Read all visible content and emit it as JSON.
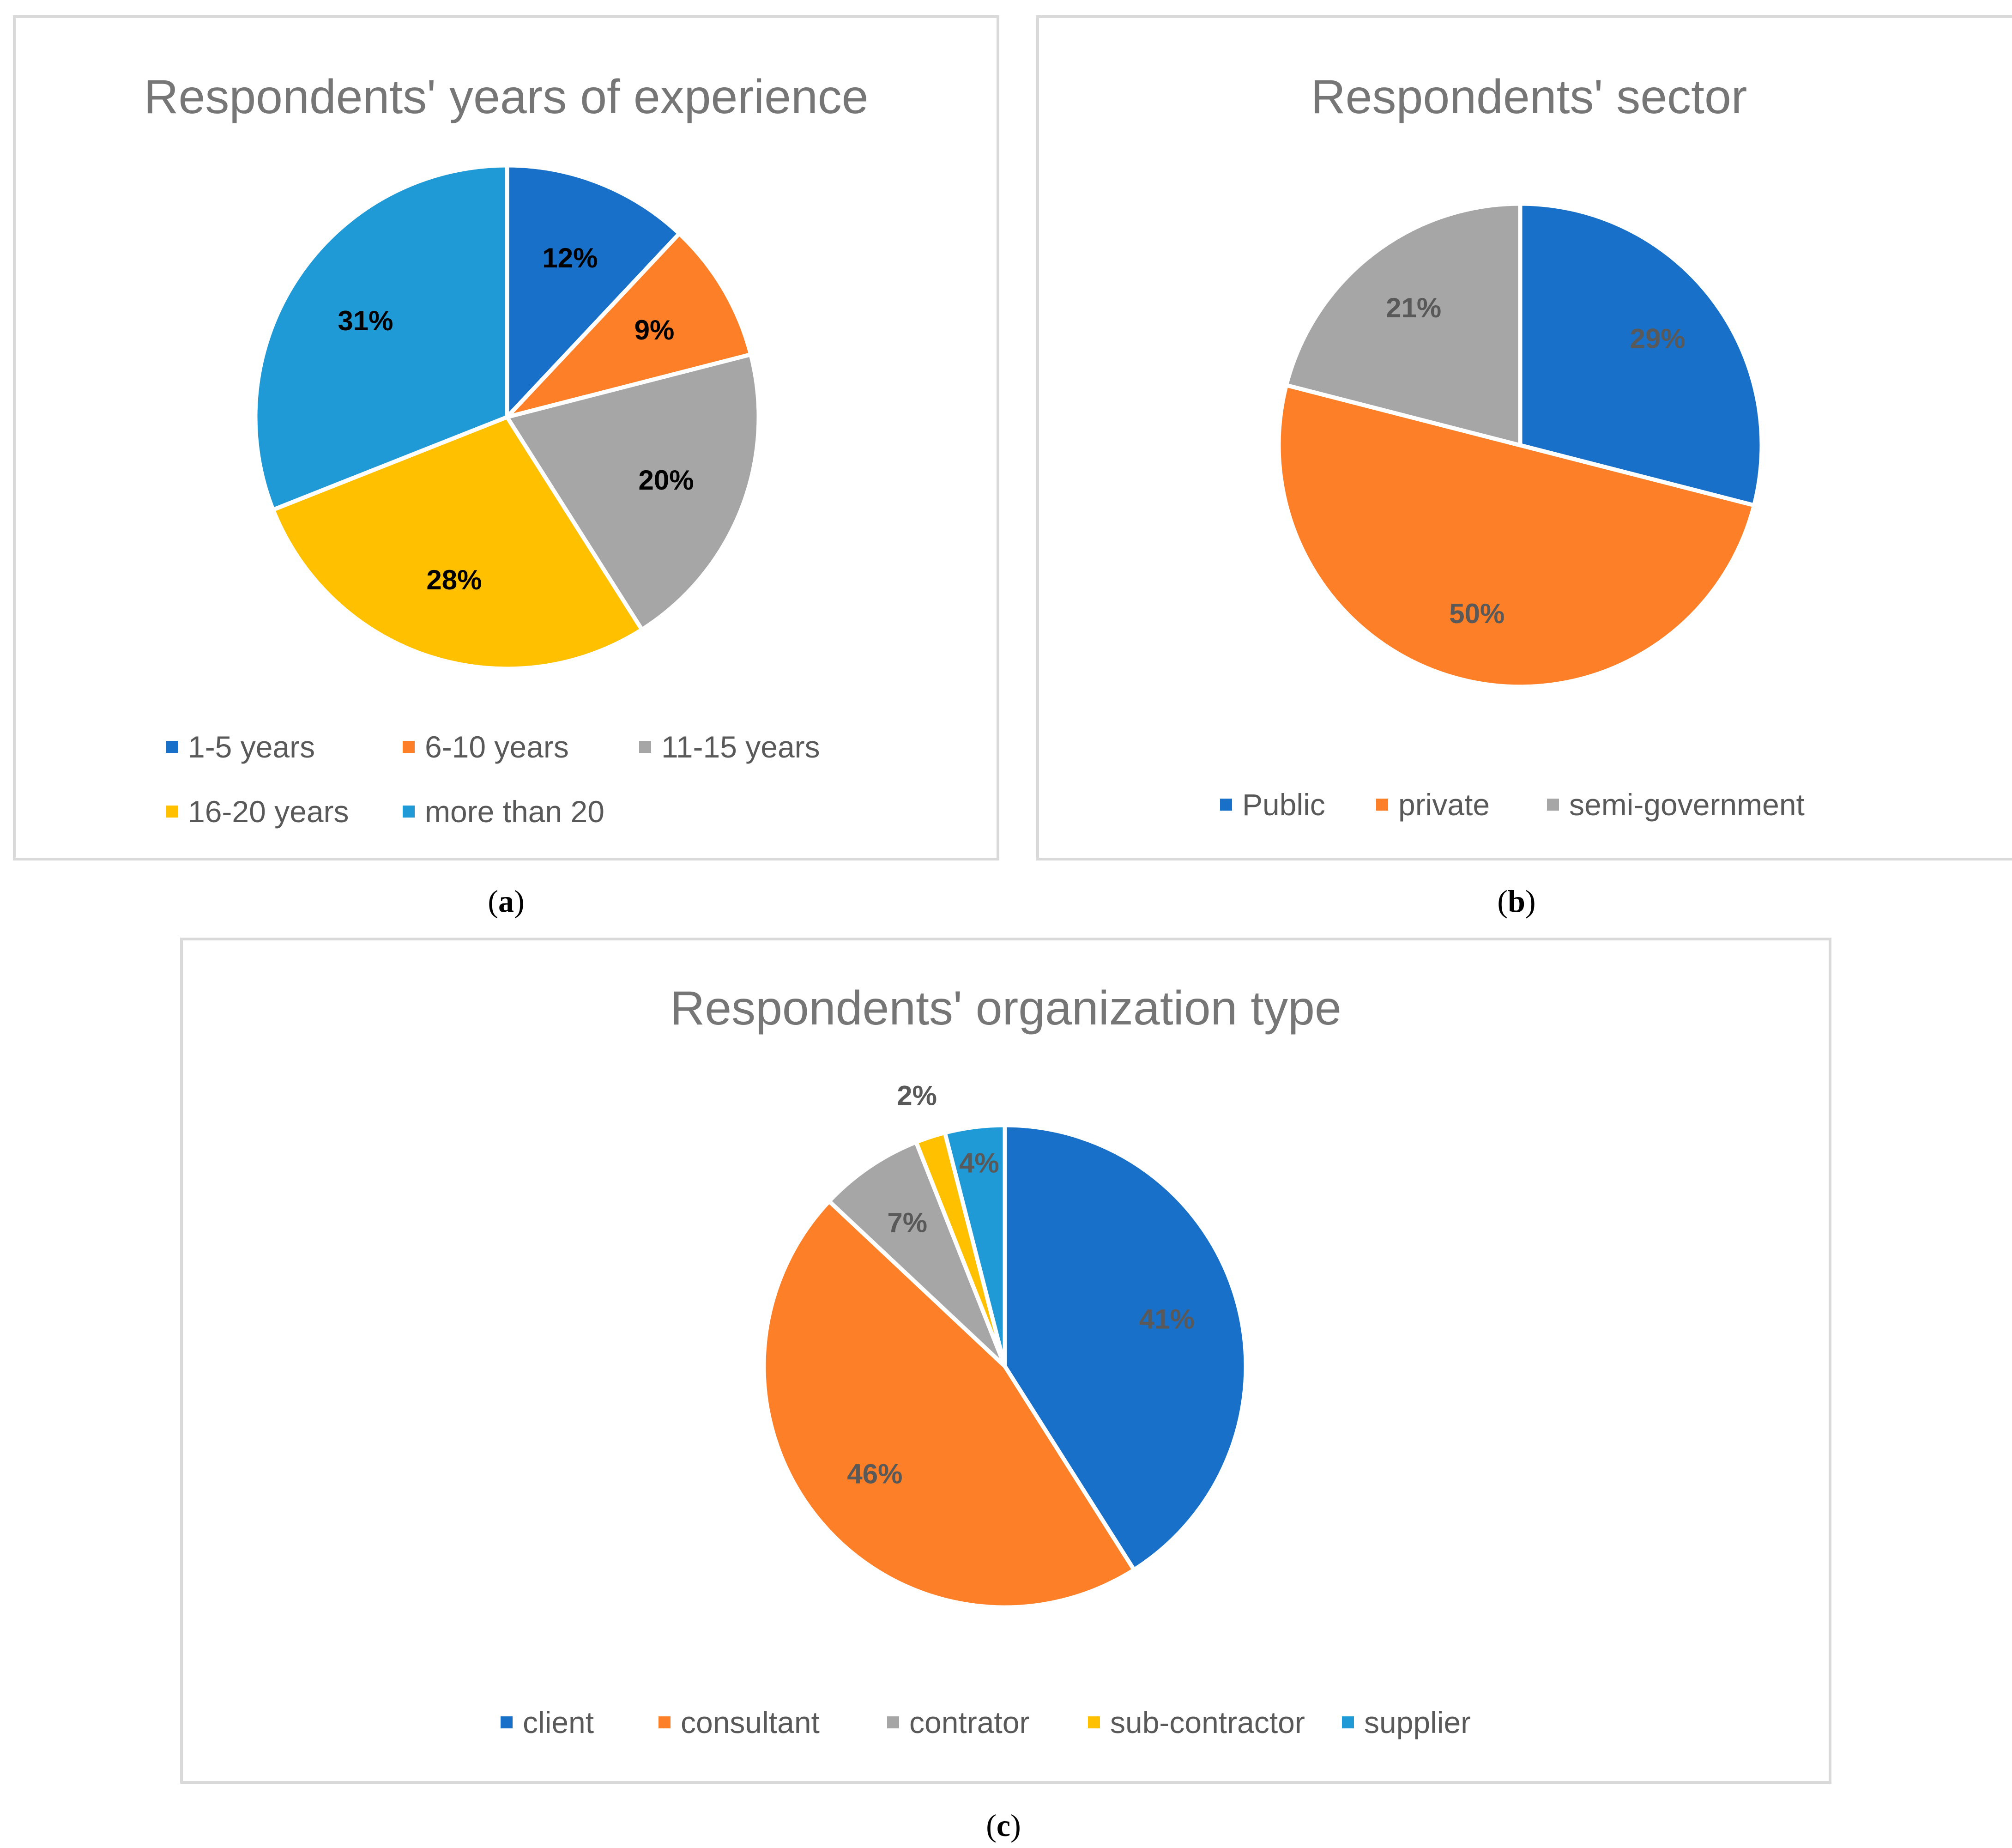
{
  "chart_data": [
    {
      "type": "pie",
      "title": "Respondents' years of experience",
      "caption": "a",
      "label_color": "#000000",
      "categories": [
        "1-5 years",
        "6-10 years",
        "11-15 years",
        "16-20 years",
        "more than 20"
      ],
      "values": [
        12,
        9,
        20,
        28,
        31
      ],
      "labels": [
        "12%",
        "9%",
        "20%",
        "28%",
        "31%"
      ],
      "colors": [
        "#1870c8",
        "#fd7f27",
        "#a6a6a6",
        "#ffc000",
        "#1f9ad6"
      ],
      "legend": "bottom"
    },
    {
      "type": "pie",
      "title": "Respondents' sector",
      "caption": "b",
      "label_color": "#595959",
      "categories": [
        "Public",
        "private",
        "semi-government"
      ],
      "values": [
        29,
        50,
        21
      ],
      "labels": [
        "29%",
        "50%",
        "21%"
      ],
      "colors": [
        "#1870c8",
        "#fd7f27",
        "#a6a6a6"
      ],
      "legend": "bottom"
    },
    {
      "type": "pie",
      "title": "Respondents' organization type",
      "caption": "c",
      "label_color": "#595959",
      "categories": [
        "client",
        "consultant",
        "contrator",
        "sub-contractor",
        "supplier"
      ],
      "values": [
        41,
        46,
        7,
        2,
        4
      ],
      "labels": [
        "41%",
        "46%",
        "7%",
        "2%",
        "4%"
      ],
      "colors": [
        "#1870c8",
        "#fd7f27",
        "#a6a6a6",
        "#ffc000",
        "#1f9ad6"
      ],
      "legend": "bottom"
    }
  ]
}
